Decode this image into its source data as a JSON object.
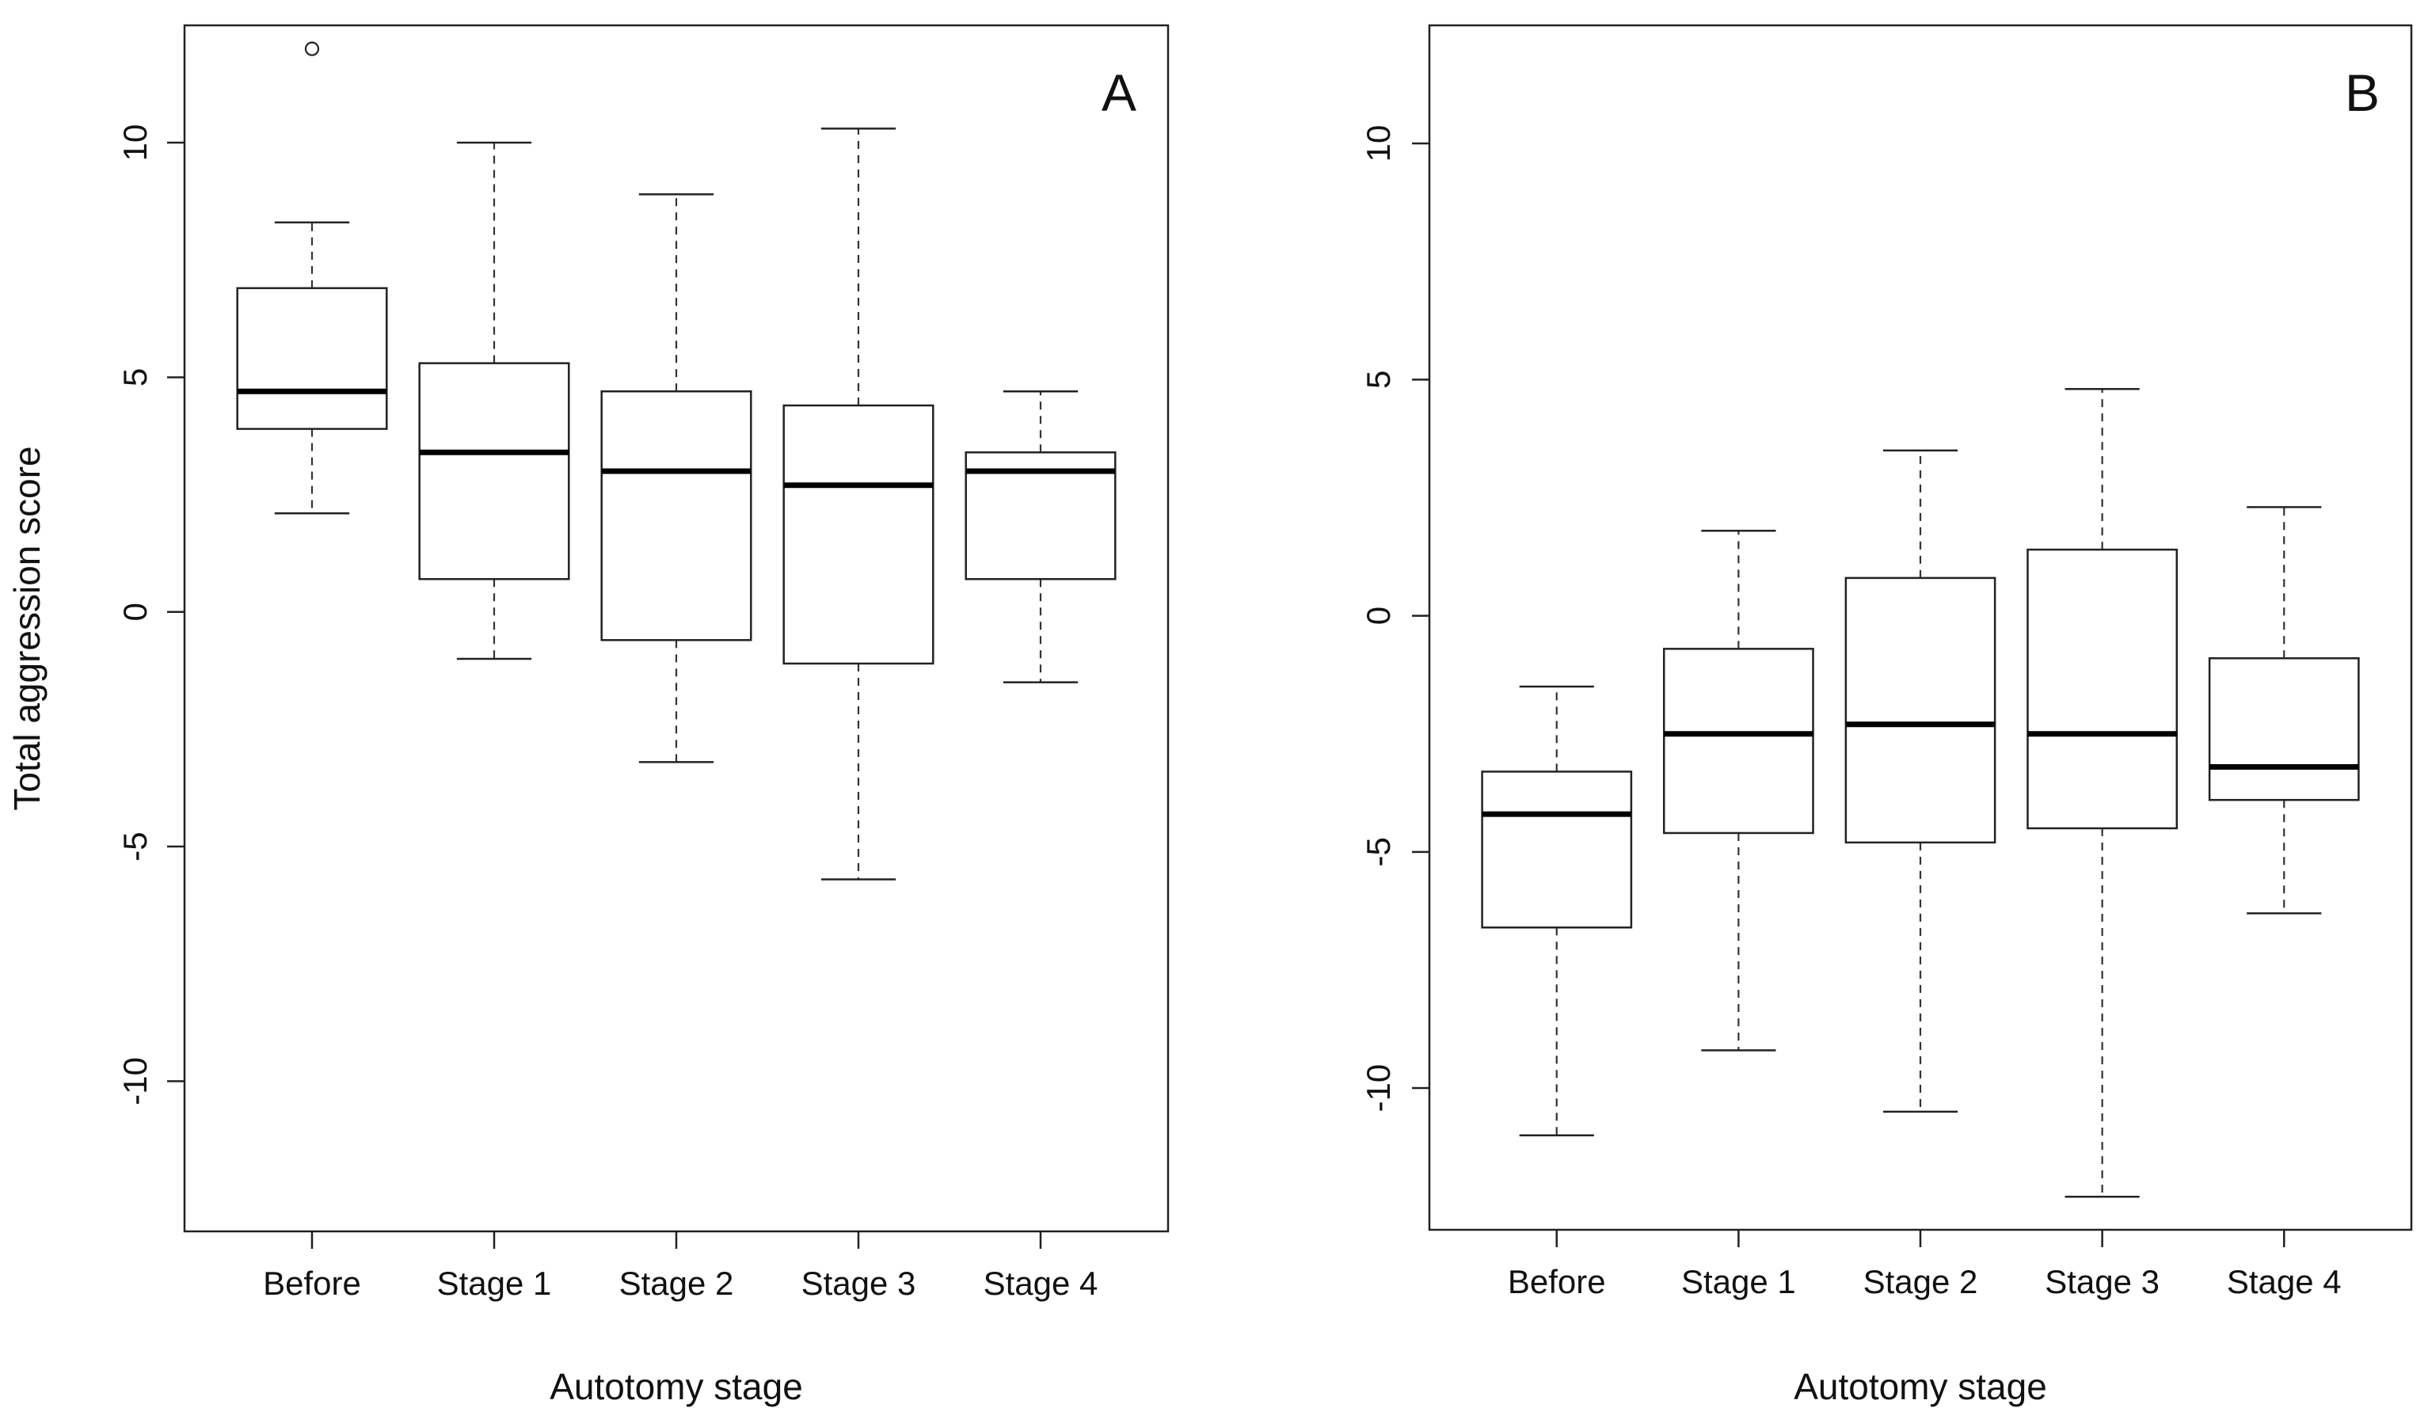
{
  "chart_data": [
    {
      "type": "box",
      "panel_label": "A",
      "xlabel": "Autotomy stage",
      "ylabel": "Total aggression score",
      "categories": [
        "Before",
        "Stage 1",
        "Stage 2",
        "Stage 3",
        "Stage 4"
      ],
      "ylim": [
        -13.2,
        12.5
      ],
      "yticks": [
        -10,
        -5,
        0,
        5,
        10
      ],
      "ytick_labels": [
        "-10",
        "-5",
        "0",
        "5",
        "10"
      ],
      "boxes": [
        {
          "category": "Before",
          "whisker_low": 2.1,
          "q1": 3.9,
          "median": 4.7,
          "q3": 6.9,
          "whisker_high": 8.3,
          "outliers": [
            12.0
          ]
        },
        {
          "category": "Stage 1",
          "whisker_low": -1.0,
          "q1": 0.7,
          "median": 3.4,
          "q3": 5.3,
          "whisker_high": 10.0,
          "outliers": []
        },
        {
          "category": "Stage 2",
          "whisker_low": -3.2,
          "q1": -0.6,
          "median": 3.0,
          "q3": 4.7,
          "whisker_high": 8.9,
          "outliers": []
        },
        {
          "category": "Stage 3",
          "whisker_low": -5.7,
          "q1": -1.1,
          "median": 2.7,
          "q3": 4.4,
          "whisker_high": 10.3,
          "outliers": []
        },
        {
          "category": "Stage 4",
          "whisker_low": -1.5,
          "q1": 0.7,
          "median": 3.0,
          "q3": 3.4,
          "whisker_high": 4.7,
          "outliers": []
        }
      ],
      "grid": false,
      "legend": "none"
    },
    {
      "type": "box",
      "panel_label": "B",
      "xlabel": "Autotomy stage",
      "ylabel": "",
      "categories": [
        "Before",
        "Stage 1",
        "Stage 2",
        "Stage 3",
        "Stage 4"
      ],
      "ylim": [
        -13.0,
        12.5
      ],
      "yticks": [
        -10,
        -5,
        0,
        5,
        10
      ],
      "ytick_labels": [
        "-10",
        "-5",
        "0",
        "5",
        "10"
      ],
      "boxes": [
        {
          "category": "Before",
          "whisker_low": -11.0,
          "q1": -6.6,
          "median": -4.2,
          "q3": -3.3,
          "whisker_high": -1.5,
          "outliers": []
        },
        {
          "category": "Stage 1",
          "whisker_low": -9.2,
          "q1": -4.6,
          "median": -2.5,
          "q3": -0.7,
          "whisker_high": 1.8,
          "outliers": []
        },
        {
          "category": "Stage 2",
          "whisker_low": -10.5,
          "q1": -4.8,
          "median": -2.3,
          "q3": 0.8,
          "whisker_high": 3.5,
          "outliers": []
        },
        {
          "category": "Stage 3",
          "whisker_low": -12.3,
          "q1": -4.5,
          "median": -2.5,
          "q3": 1.4,
          "whisker_high": 4.8,
          "outliers": []
        },
        {
          "category": "Stage 4",
          "whisker_low": -6.3,
          "q1": -3.9,
          "median": -3.2,
          "q3": -0.9,
          "whisker_high": 2.3,
          "outliers": []
        }
      ],
      "grid": false,
      "legend": "none"
    }
  ]
}
